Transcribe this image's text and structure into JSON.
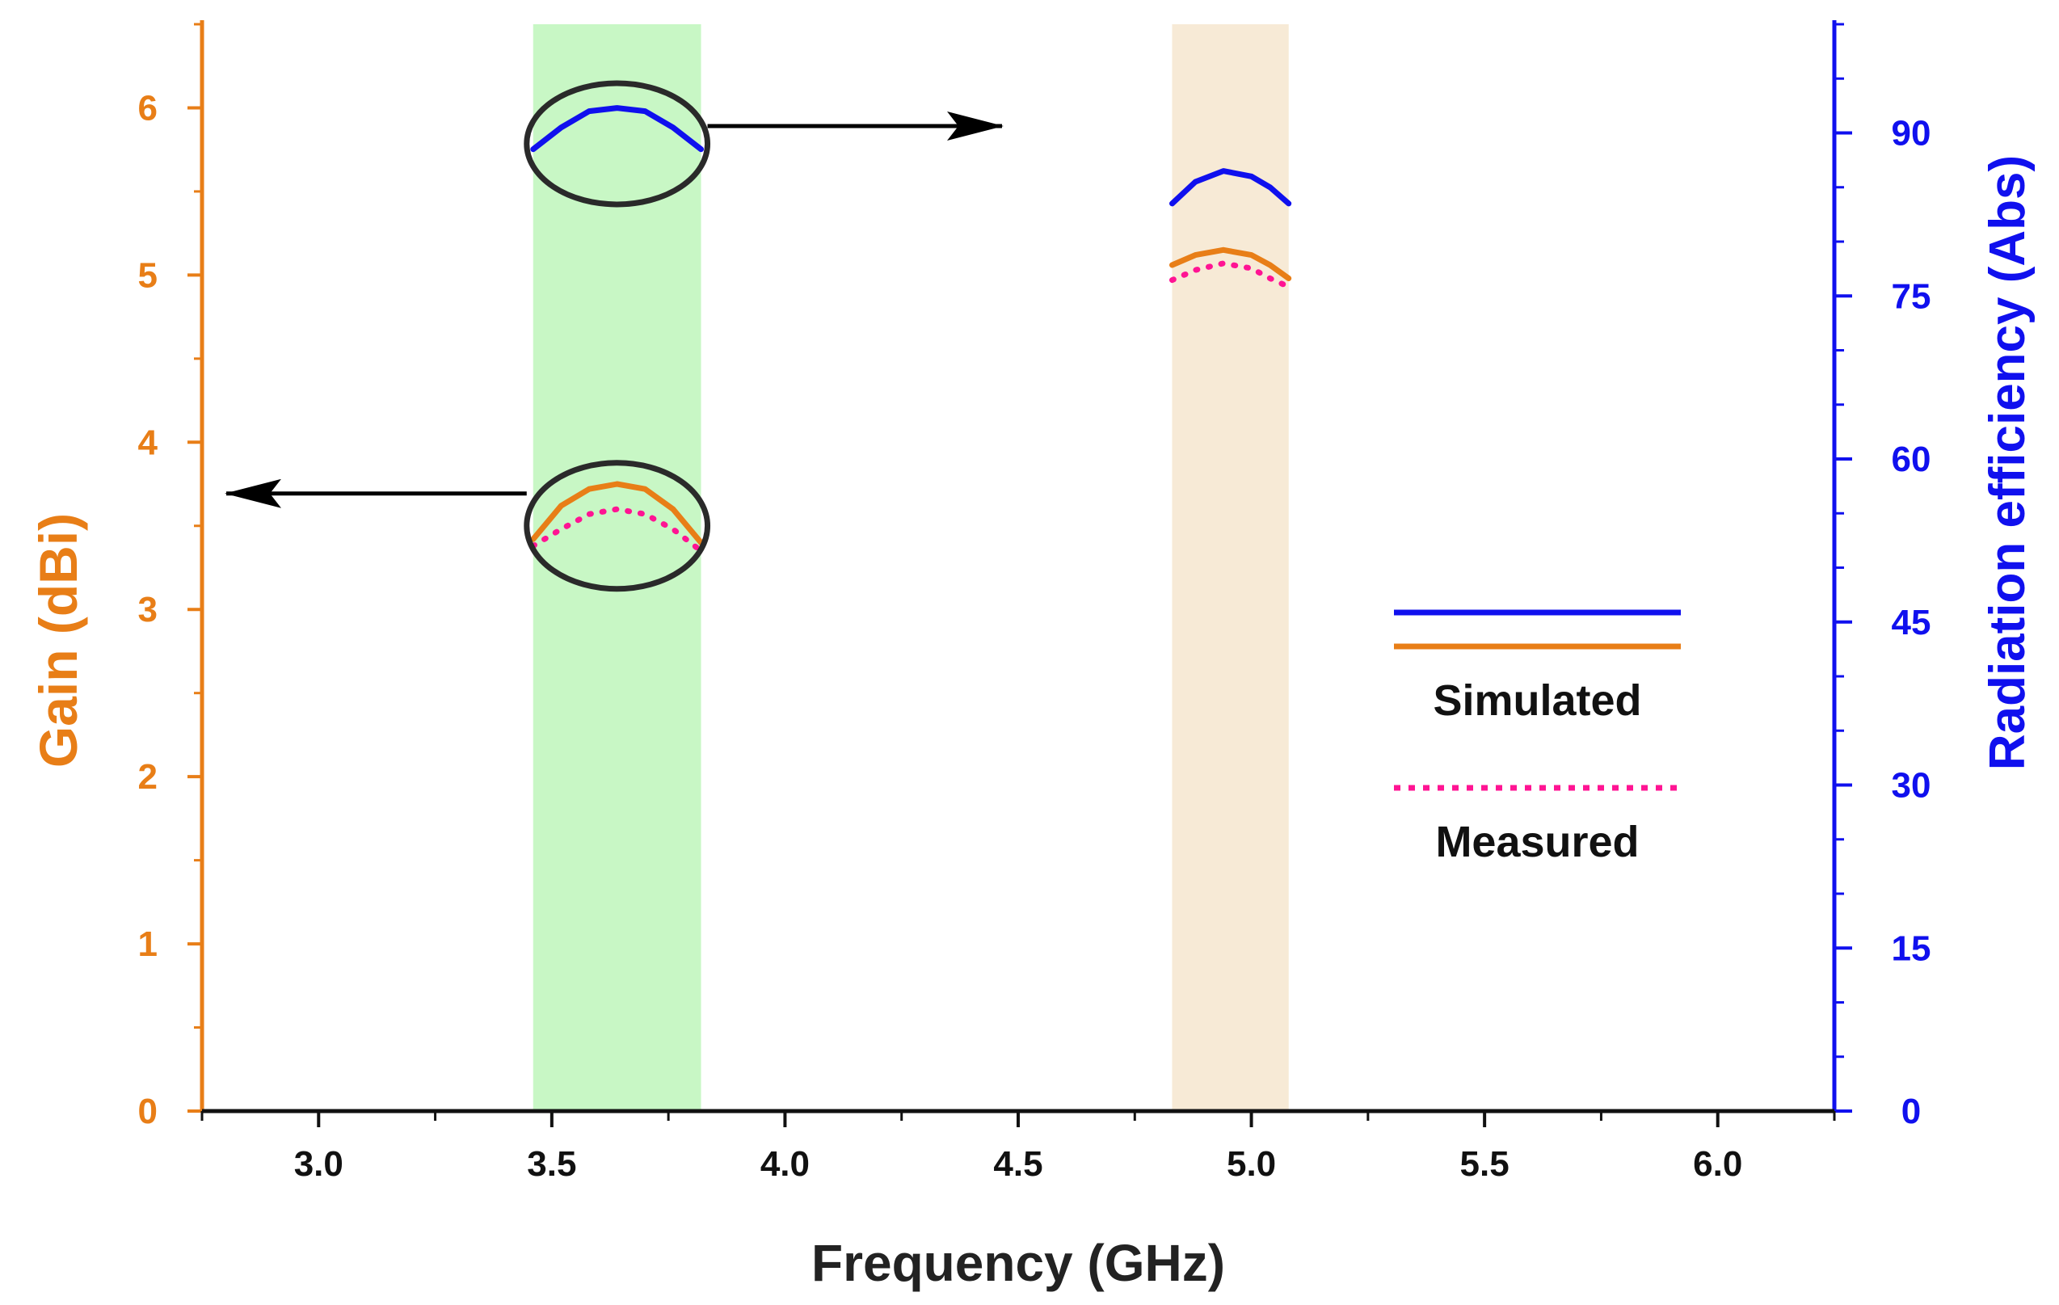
{
  "chart_data": {
    "type": "line",
    "title": "",
    "xlabel": "Frequency (GHz)",
    "ylabel_left": "Gain (dBi)",
    "ylabel_right": "Radiation efficiency (Abs)",
    "xlim": [
      2.75,
      6.25
    ],
    "ylim_left": [
      0,
      6.5
    ],
    "ylim_right": [
      0,
      100
    ],
    "x_ticks": [
      3.0,
      3.5,
      4.0,
      4.5,
      5.0,
      5.5,
      6.0
    ],
    "x_tick_labels": [
      "3.0",
      "3.5",
      "4.0",
      "4.5",
      "5.0",
      "5.5",
      "6.0"
    ],
    "y_left_ticks": [
      0,
      1,
      2,
      3,
      4,
      5,
      6
    ],
    "y_left_tick_labels": [
      "0",
      "1",
      "2",
      "3",
      "4",
      "5",
      "6"
    ],
    "y_right_ticks": [
      0,
      15,
      30,
      45,
      60,
      75,
      90
    ],
    "y_right_tick_labels": [
      "0",
      "15",
      "30",
      "45",
      "60",
      "75",
      "90"
    ],
    "bands": [
      {
        "x_start": 3.46,
        "x_end": 3.82,
        "color": "#c8f7c5"
      },
      {
        "x_start": 4.83,
        "x_end": 5.08,
        "color": "#f7ead6"
      }
    ],
    "series": [
      {
        "name": "Simulated efficiency",
        "axis": "right",
        "color": "#1010ee",
        "style": "solid",
        "segments": [
          {
            "x": [
              3.46,
              3.52,
              3.58,
              3.64,
              3.7,
              3.76,
              3.82
            ],
            "y": [
              88.5,
              90.5,
              92.0,
              92.3,
              92.0,
              90.5,
              88.5
            ]
          },
          {
            "x": [
              4.83,
              4.88,
              4.94,
              5.0,
              5.04,
              5.08
            ],
            "y": [
              83.5,
              85.5,
              86.5,
              86.0,
              85.0,
              83.5
            ]
          }
        ]
      },
      {
        "name": "Simulated gain",
        "axis": "left",
        "color": "#e87e17",
        "style": "solid",
        "segments": [
          {
            "x": [
              3.46,
              3.52,
              3.58,
              3.64,
              3.7,
              3.76,
              3.82
            ],
            "y": [
              3.42,
              3.62,
              3.72,
              3.75,
              3.72,
              3.6,
              3.4
            ]
          },
          {
            "x": [
              4.83,
              4.88,
              4.94,
              5.0,
              5.04,
              5.08
            ],
            "y": [
              5.06,
              5.12,
              5.15,
              5.12,
              5.06,
              4.98
            ]
          }
        ]
      },
      {
        "name": "Measured gain",
        "axis": "left",
        "color": "#ff1493",
        "style": "dotted",
        "segments": [
          {
            "x": [
              3.46,
              3.52,
              3.58,
              3.64,
              3.7,
              3.76,
              3.82
            ],
            "y": [
              3.38,
              3.48,
              3.57,
              3.6,
              3.57,
              3.48,
              3.35
            ]
          },
          {
            "x": [
              4.83,
              4.88,
              4.94,
              5.0,
              5.04,
              5.08
            ],
            "y": [
              4.97,
              5.03,
              5.07,
              5.04,
              4.98,
              4.93
            ]
          }
        ]
      }
    ],
    "legend": {
      "placement": "right-center",
      "simulated_label": "Simulated",
      "measured_label": "Measured"
    },
    "annotations": [
      {
        "type": "circle-arrow",
        "target": "efficiency curve",
        "arrow_direction": "right",
        "label": "points to right axis"
      },
      {
        "type": "circle-arrow",
        "target": "gain curves",
        "arrow_direction": "left",
        "label": "points to left axis"
      }
    ]
  },
  "colors": {
    "left_axis": "#e87e17",
    "right_axis": "#1010ee",
    "x_axis": "#111111"
  }
}
